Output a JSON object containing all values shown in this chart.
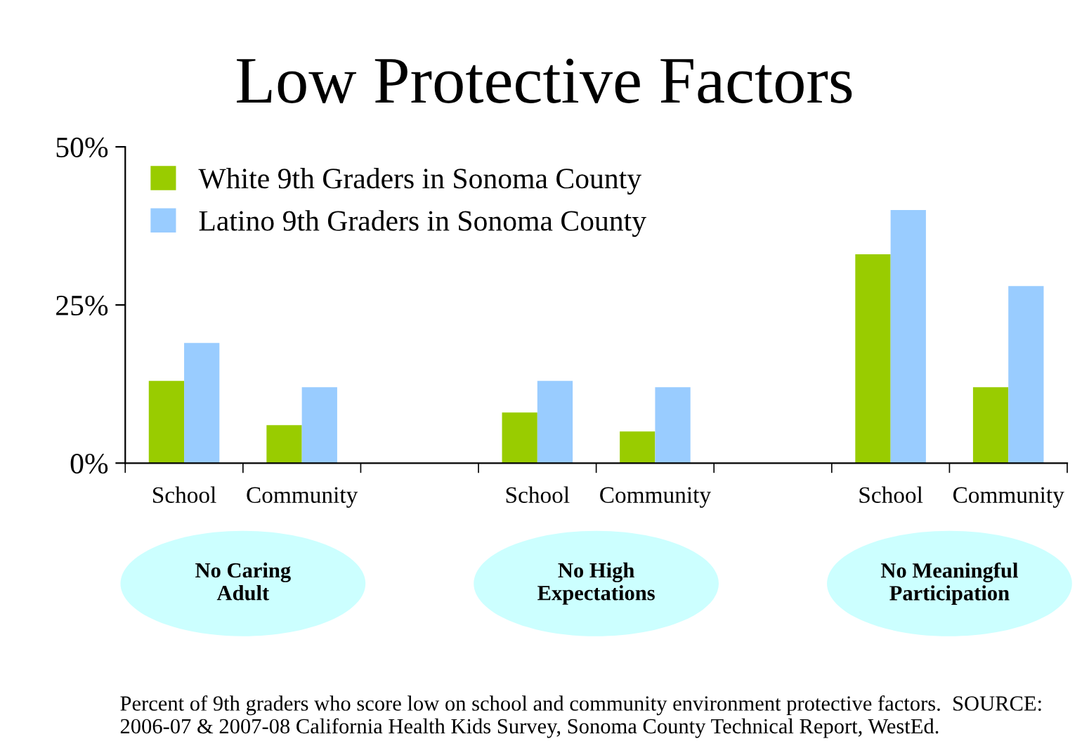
{
  "chart_data": {
    "type": "bar",
    "title": "Low Protective Factors",
    "categories": [
      "School",
      "Community",
      null,
      "School",
      "Community",
      null,
      "School",
      "Community"
    ],
    "series": [
      {
        "name": "White 9th Graders in Sonoma County",
        "color": "#99cc00",
        "values": [
          13,
          6,
          null,
          8,
          5,
          null,
          33,
          12
        ]
      },
      {
        "name": "Latino 9th Graders in Sonoma County",
        "color": "#99ccff",
        "values": [
          19,
          12,
          null,
          13,
          12,
          null,
          40,
          28
        ]
      }
    ],
    "ylim": [
      0,
      50
    ],
    "yticks": [
      {
        "value": 0,
        "label": "0%"
      },
      {
        "value": 25,
        "label": "25%"
      },
      {
        "value": 50,
        "label": "50%"
      }
    ],
    "grid": false,
    "legend": "top left",
    "annotations": [
      "No Caring\nAdult",
      "No High\nExpectations",
      "No Meaningful\nParticipation",
      "Percent of 9th graders who score low on school and community environment protective factors.  SOURCE:  2006-07 & 2007-08 California Health Kids Survey, Sonoma County Technical Report, WestEd."
    ]
  }
}
